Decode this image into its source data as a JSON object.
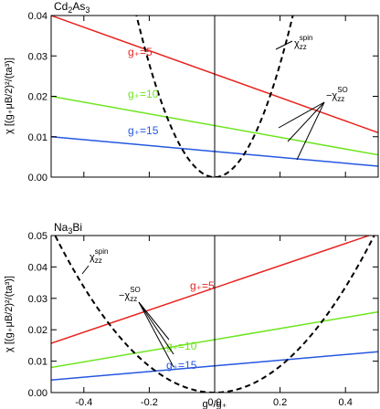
{
  "colors": {
    "red": "#e8231f",
    "green": "#6ee51f",
    "blue": "#2557e0",
    "dashed": "#000000"
  },
  "chart_data": [
    {
      "type": "line",
      "title": "Cd2As3",
      "title_main": "Cd",
      "title_sub1": "2",
      "title_mid": "As",
      "title_sub2": "3",
      "ylabel": "χ [(g₊μB/2)²/(ta³)]",
      "xlim": [
        -0.5,
        0.5
      ],
      "ylim": [
        0,
        0.04
      ],
      "yticks": [
        "0.00",
        "0.01",
        "0.02",
        "0.03",
        "0.04"
      ],
      "ytick_values": [
        0,
        0.01,
        0.02,
        0.03,
        0.04
      ],
      "xtick_values": [
        -0.4,
        -0.2,
        0,
        0.2,
        0.4
      ],
      "vline_x": 0,
      "series": [
        {
          "name": "g₊=5",
          "color": "red",
          "x": [
            -0.5,
            0.5
          ],
          "y": [
            0.04,
            0.011
          ]
        },
        {
          "name": "g₊=10",
          "color": "green",
          "x": [
            -0.5,
            0.5
          ],
          "y": [
            0.02,
            0.0055
          ]
        },
        {
          "name": "g₊=15",
          "color": "blue",
          "x": [
            -0.5,
            0.5
          ],
          "y": [
            0.01,
            0.0027
          ]
        },
        {
          "name": "χzz spin",
          "color": "dashed",
          "dashed": true,
          "x_vertex": 0,
          "curvature": 0.7,
          "visible_range": [
            -0.25,
            0.25
          ]
        }
      ],
      "annotations": {
        "spin_main": "χ",
        "spin_sub": "zz",
        "spin_sup": "spin",
        "so_prefix": "−χ",
        "so_sub": "zz",
        "so_sup": "SO"
      }
    },
    {
      "type": "line",
      "title": "Na3Bi",
      "title_main": "Na",
      "title_sub1": "3",
      "title_mid": "Bi",
      "title_sub2": "",
      "ylabel": "χ [(g₊μB/2)²/(ta³)]",
      "xlabel": "g₋/g₊",
      "xlim": [
        -0.5,
        0.5
      ],
      "ylim": [
        0,
        0.05
      ],
      "yticks": [
        "0.00",
        "0.01",
        "0.02",
        "0.03",
        "0.04",
        "0.05"
      ],
      "ytick_values": [
        0,
        0.01,
        0.02,
        0.03,
        0.04,
        0.05
      ],
      "xticks": [
        "-0.4",
        "-0.2",
        "0.0",
        "0.2",
        "0.4"
      ],
      "xtick_values": [
        -0.4,
        -0.2,
        0,
        0.2,
        0.4
      ],
      "vline_x": 0,
      "series": [
        {
          "name": "g₊=5",
          "color": "red",
          "x": [
            -0.5,
            0.5
          ],
          "y": [
            0.0157,
            0.051
          ]
        },
        {
          "name": "g₊=10",
          "color": "green",
          "x": [
            -0.5,
            0.5
          ],
          "y": [
            0.008,
            0.0257
          ]
        },
        {
          "name": "g₊=15",
          "color": "blue",
          "x": [
            -0.5,
            0.5
          ],
          "y": [
            0.004,
            0.013
          ]
        },
        {
          "name": "χzz spin",
          "color": "dashed",
          "dashed": true,
          "x_vertex": 0,
          "curvature": 0.21,
          "visible_range": [
            -0.5,
            0.5
          ]
        }
      ],
      "annotations": {
        "spin_main": "χ",
        "spin_sub": "zz",
        "spin_sup": "spin",
        "so_prefix": "−χ",
        "so_sub": "zz",
        "so_sup": "SO"
      }
    }
  ]
}
